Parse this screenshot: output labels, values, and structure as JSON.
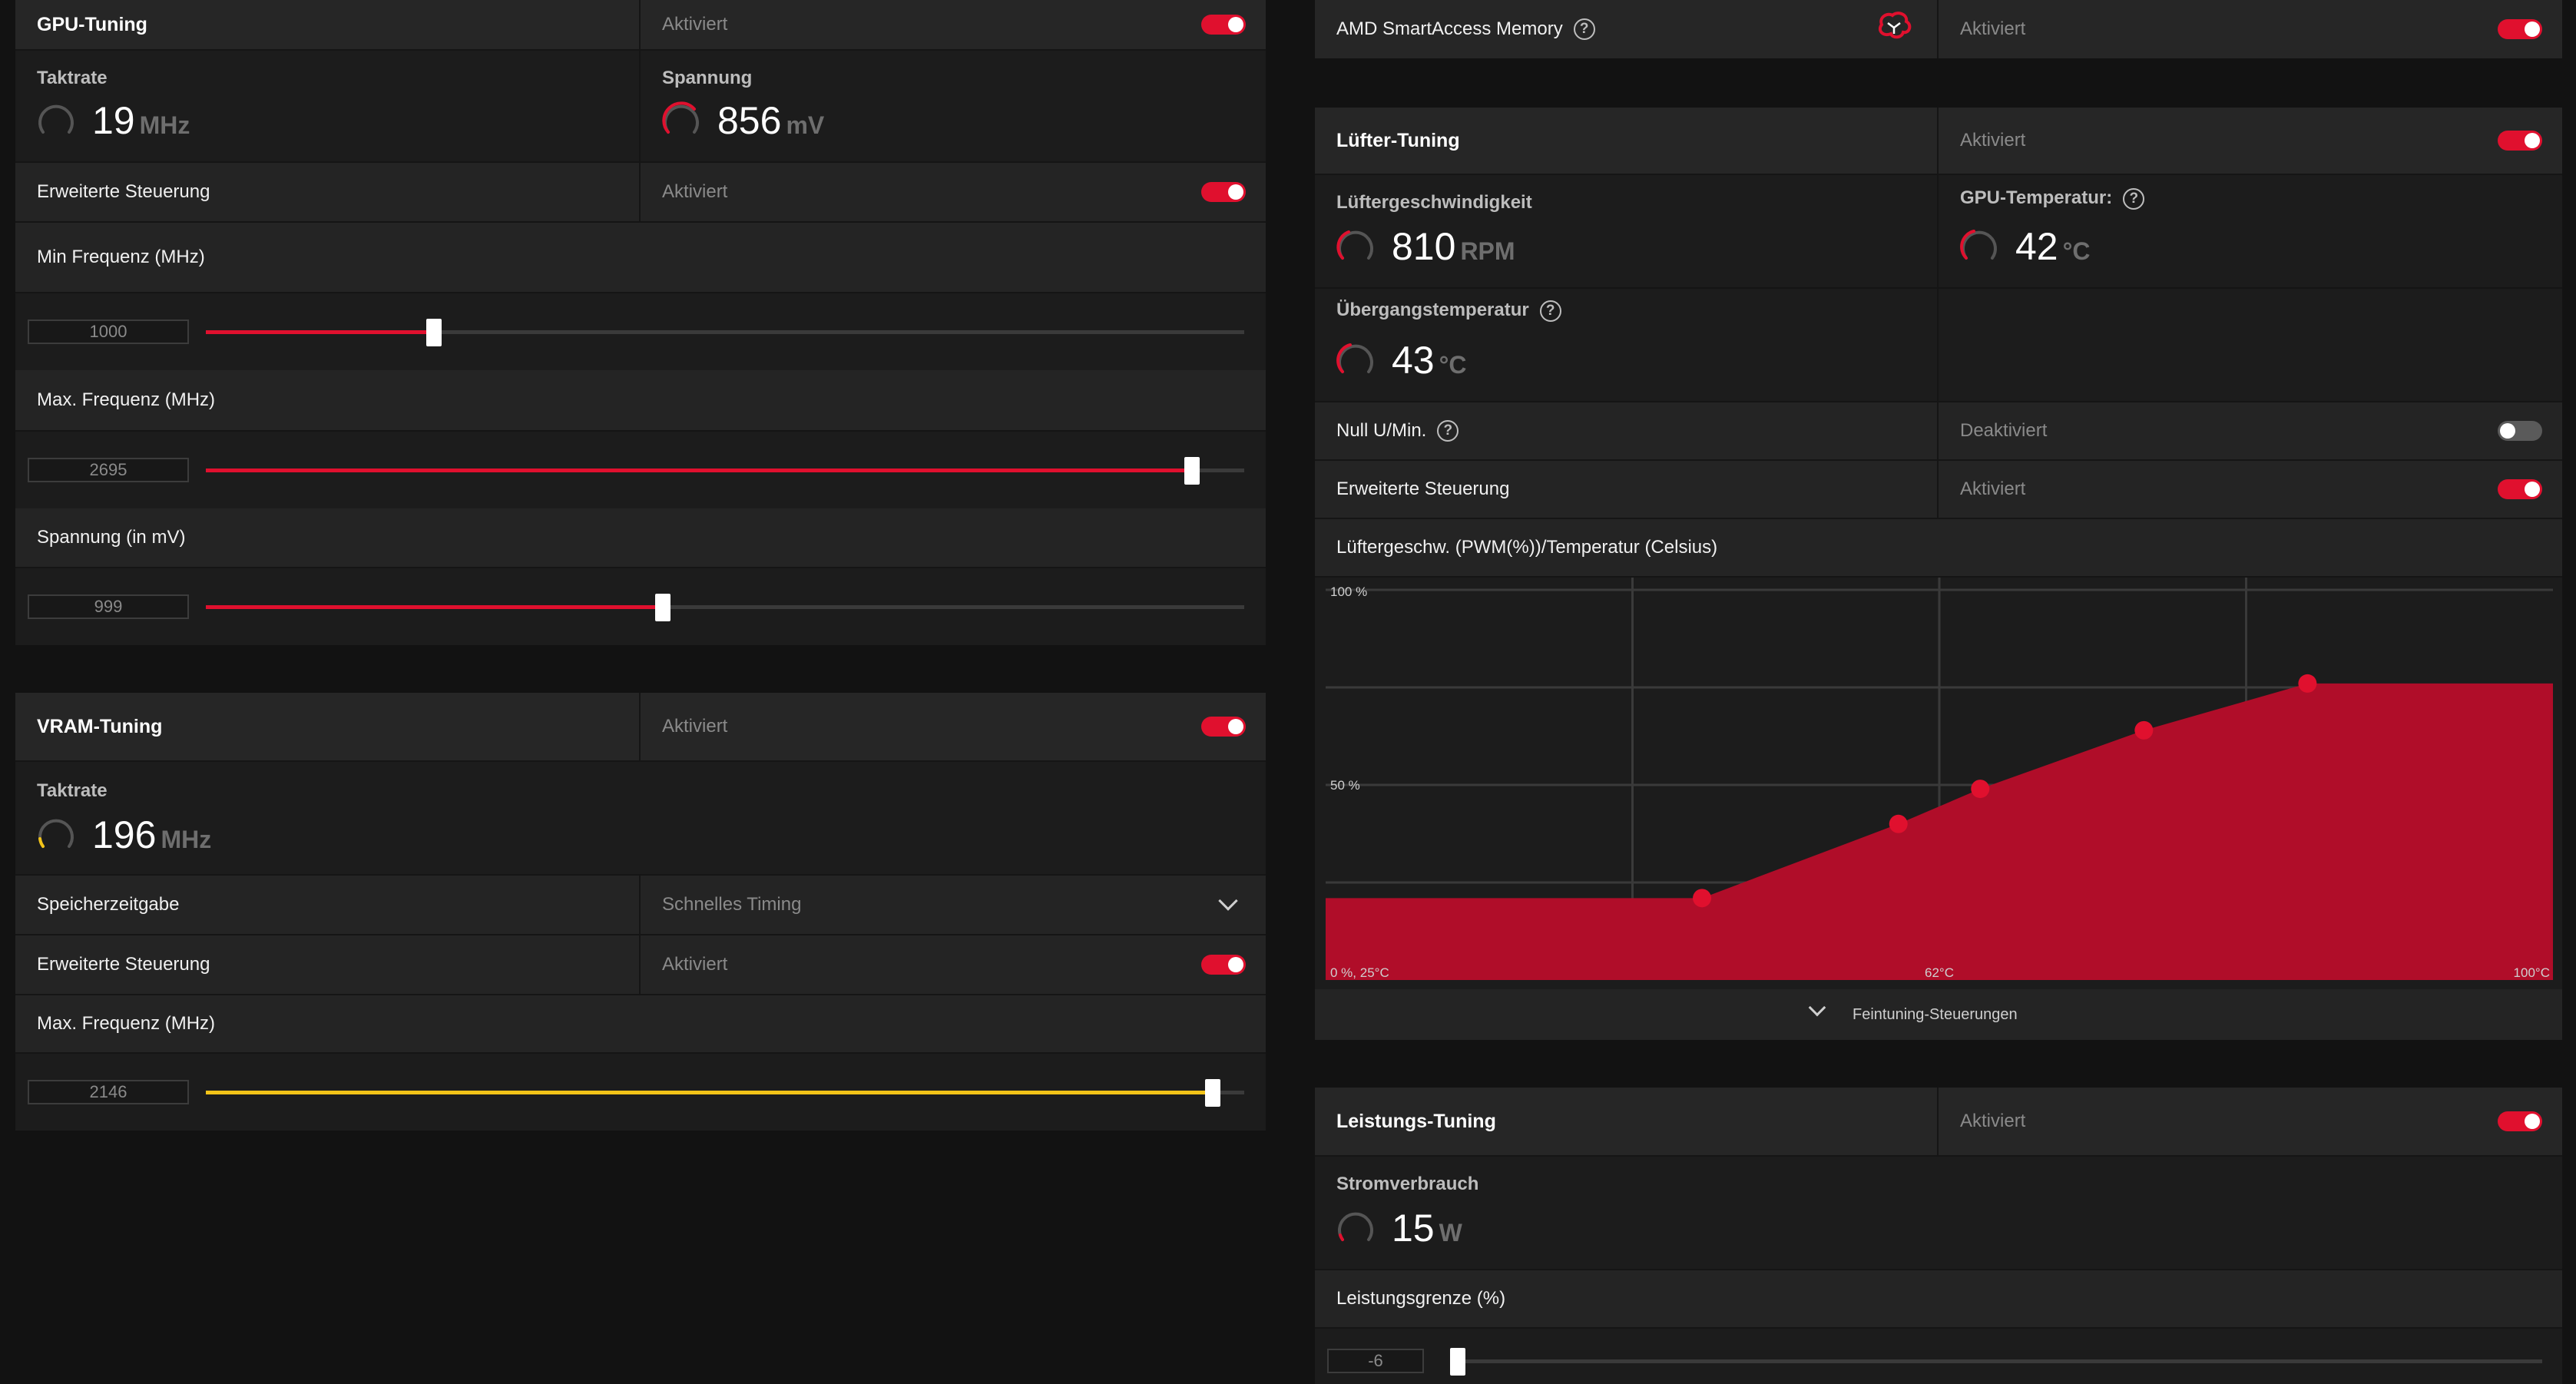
{
  "colors": {
    "accent": "#e0102e",
    "accent_fill": "#b00d29",
    "vram_accent": "#f2c318",
    "panel": "#1f1f1f"
  },
  "gpu_tuning": {
    "title": "GPU-Tuning",
    "status": "Aktiviert",
    "enabled": true,
    "clock": {
      "label": "Taktrate",
      "value": "19",
      "unit": "MHz"
    },
    "voltage": {
      "label": "Spannung",
      "value": "856",
      "unit": "mV"
    },
    "advanced": {
      "label": "Erweiterte Steuerung",
      "status": "Aktiviert",
      "enabled": true
    },
    "min_freq": {
      "label": "Min Frequenz (MHz)",
      "value": "1000",
      "fraction": 0.22
    },
    "max_freq": {
      "label": "Max. Frequenz (MHz)",
      "value": "2695",
      "fraction": 0.95
    },
    "voltage_mv": {
      "label": "Spannung (in mV)",
      "value": "999",
      "fraction": 0.44
    }
  },
  "vram_tuning": {
    "title": "VRAM-Tuning",
    "status": "Aktiviert",
    "enabled": true,
    "clock": {
      "label": "Taktrate",
      "value": "196",
      "unit": "MHz"
    },
    "timing": {
      "label": "Speicherzeitgabe",
      "value": "Schnelles Timing"
    },
    "advanced": {
      "label": "Erweiterte Steuerung",
      "status": "Aktiviert",
      "enabled": true
    },
    "max_freq": {
      "label": "Max. Frequenz (MHz)",
      "value": "2146",
      "fraction": 0.97
    }
  },
  "sam": {
    "label": "AMD SmartAccess Memory",
    "status": "Aktiviert",
    "enabled": true,
    "icon": "brain-icon"
  },
  "fan_tuning": {
    "title": "Lüfter-Tuning",
    "status": "Aktiviert",
    "enabled": true,
    "fan_speed": {
      "label": "Lüftergeschwindigkeit",
      "value": "810",
      "unit": "RPM"
    },
    "gpu_temp": {
      "label": "GPU-Temperatur:",
      "value": "42",
      "unit": "°C"
    },
    "junction_temp": {
      "label": "Übergangstemperatur",
      "value": "43",
      "unit": "°C"
    },
    "zero_rpm": {
      "label": "Null U/Min.",
      "status": "Deaktiviert",
      "enabled": false
    },
    "advanced": {
      "label": "Erweiterte Steuerung",
      "status": "Aktiviert",
      "enabled": true
    },
    "curve_title": "Lüftergeschw. (PWM(%))/Temperatur (Celsius)",
    "fine_tuning": "Feintuning-Steuerungen"
  },
  "chart_data": {
    "type": "area",
    "title": "Lüftergeschw. (PWM(%))/Temperatur (Celsius)",
    "y_tick_labels": [
      "100 %",
      "50 %"
    ],
    "x_tick_labels": [
      "0 %, 25°C",
      "62°C",
      "100°C"
    ],
    "xlim": [
      25,
      100
    ],
    "ylim": [
      0,
      100
    ],
    "grid": true,
    "series": [
      {
        "x": [
          25,
          48,
          60,
          65,
          75,
          85,
          100
        ],
        "y": [
          21,
          21,
          40,
          49,
          64,
          76,
          76
        ]
      }
    ],
    "points": [
      {
        "x": 48,
        "y": 21
      },
      {
        "x": 60,
        "y": 40
      },
      {
        "x": 65,
        "y": 49
      },
      {
        "x": 75,
        "y": 64
      },
      {
        "x": 85,
        "y": 76
      }
    ]
  },
  "power_tuning": {
    "title": "Leistungs-Tuning",
    "status": "Aktiviert",
    "enabled": true,
    "power": {
      "label": "Stromverbrauch",
      "value": "15",
      "unit": "W"
    },
    "limit": {
      "label": "Leistungsgrenze (%)",
      "value": "-6",
      "fraction": 0.0
    }
  }
}
